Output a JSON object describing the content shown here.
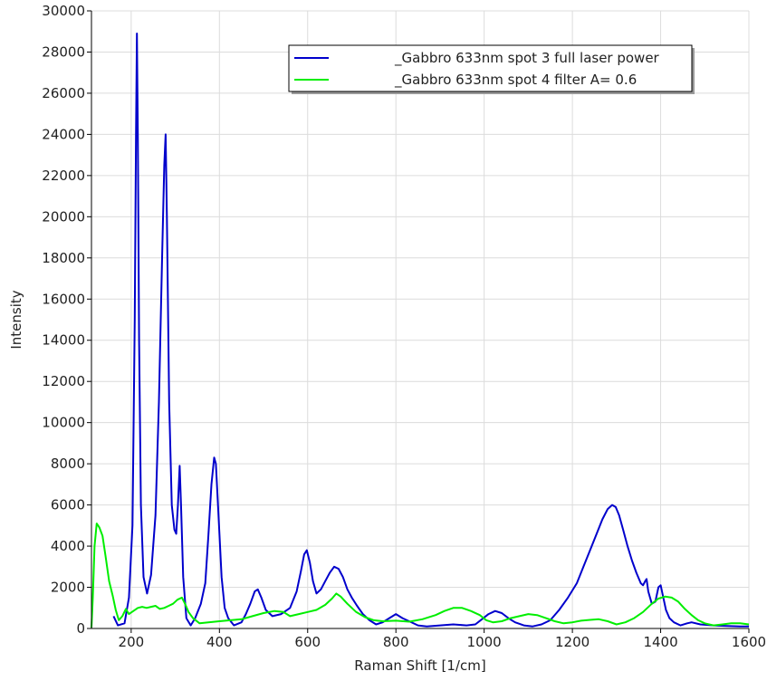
{
  "chart_data": {
    "type": "line",
    "title": "",
    "xlabel": "Raman Shift [1/cm]",
    "ylabel": "Intensity",
    "xlim": [
      110,
      1600
    ],
    "ylim": [
      0,
      30000
    ],
    "x_ticks": [
      200,
      400,
      600,
      800,
      1000,
      1200,
      1400,
      1600
    ],
    "y_ticks": [
      0,
      2000,
      4000,
      6000,
      8000,
      10000,
      12000,
      14000,
      16000,
      18000,
      20000,
      22000,
      24000,
      26000,
      28000,
      30000
    ],
    "grid": true,
    "legend_position": "top-right",
    "series": [
      {
        "name": "_Gabbro 633nm spot 3 full laser power",
        "color": "#0000cc",
        "points": [
          [
            160,
            600
          ],
          [
            170,
            150
          ],
          [
            185,
            250
          ],
          [
            195,
            1500
          ],
          [
            203,
            5000
          ],
          [
            208,
            15000
          ],
          [
            211,
            24000
          ],
          [
            213,
            28900
          ],
          [
            215,
            24000
          ],
          [
            218,
            14000
          ],
          [
            222,
            6000
          ],
          [
            228,
            2500
          ],
          [
            236,
            1700
          ],
          [
            245,
            2600
          ],
          [
            255,
            5500
          ],
          [
            263,
            11000
          ],
          [
            270,
            18000
          ],
          [
            275,
            22500
          ],
          [
            278,
            24000
          ],
          [
            281,
            20000
          ],
          [
            286,
            11000
          ],
          [
            292,
            6000
          ],
          [
            298,
            4800
          ],
          [
            302,
            4600
          ],
          [
            306,
            6000
          ],
          [
            310,
            7900
          ],
          [
            313,
            6000
          ],
          [
            318,
            2500
          ],
          [
            325,
            500
          ],
          [
            335,
            150
          ],
          [
            345,
            500
          ],
          [
            358,
            1200
          ],
          [
            368,
            2200
          ],
          [
            375,
            4500
          ],
          [
            382,
            7000
          ],
          [
            388,
            8300
          ],
          [
            392,
            8000
          ],
          [
            398,
            5500
          ],
          [
            405,
            2500
          ],
          [
            412,
            1000
          ],
          [
            420,
            500
          ],
          [
            433,
            150
          ],
          [
            450,
            300
          ],
          [
            460,
            700
          ],
          [
            470,
            1200
          ],
          [
            480,
            1800
          ],
          [
            487,
            1900
          ],
          [
            495,
            1500
          ],
          [
            505,
            900
          ],
          [
            520,
            600
          ],
          [
            540,
            700
          ],
          [
            560,
            1000
          ],
          [
            575,
            1800
          ],
          [
            585,
            2800
          ],
          [
            592,
            3600
          ],
          [
            598,
            3800
          ],
          [
            605,
            3200
          ],
          [
            612,
            2300
          ],
          [
            620,
            1700
          ],
          [
            630,
            1900
          ],
          [
            640,
            2300
          ],
          [
            650,
            2700
          ],
          [
            660,
            3000
          ],
          [
            670,
            2900
          ],
          [
            680,
            2500
          ],
          [
            690,
            1900
          ],
          [
            700,
            1500
          ],
          [
            712,
            1100
          ],
          [
            725,
            700
          ],
          [
            740,
            400
          ],
          [
            755,
            200
          ],
          [
            770,
            300
          ],
          [
            785,
            500
          ],
          [
            800,
            700
          ],
          [
            815,
            500
          ],
          [
            830,
            350
          ],
          [
            850,
            150
          ],
          [
            870,
            100
          ],
          [
            900,
            150
          ],
          [
            930,
            200
          ],
          [
            960,
            150
          ],
          [
            980,
            200
          ],
          [
            995,
            450
          ],
          [
            1010,
            700
          ],
          [
            1025,
            850
          ],
          [
            1040,
            750
          ],
          [
            1055,
            500
          ],
          [
            1070,
            300
          ],
          [
            1090,
            150
          ],
          [
            1110,
            100
          ],
          [
            1130,
            200
          ],
          [
            1150,
            400
          ],
          [
            1170,
            900
          ],
          [
            1190,
            1500
          ],
          [
            1210,
            2200
          ],
          [
            1225,
            3000
          ],
          [
            1240,
            3800
          ],
          [
            1255,
            4600
          ],
          [
            1268,
            5300
          ],
          [
            1280,
            5800
          ],
          [
            1290,
            6000
          ],
          [
            1298,
            5900
          ],
          [
            1306,
            5500
          ],
          [
            1315,
            4800
          ],
          [
            1325,
            4000
          ],
          [
            1335,
            3300
          ],
          [
            1345,
            2700
          ],
          [
            1355,
            2200
          ],
          [
            1360,
            2100
          ],
          [
            1365,
            2300
          ],
          [
            1368,
            2400
          ],
          [
            1372,
            1800
          ],
          [
            1380,
            1200
          ],
          [
            1388,
            1300
          ],
          [
            1395,
            2000
          ],
          [
            1400,
            2100
          ],
          [
            1405,
            1600
          ],
          [
            1412,
            900
          ],
          [
            1420,
            500
          ],
          [
            1430,
            300
          ],
          [
            1445,
            150
          ],
          [
            1460,
            250
          ],
          [
            1470,
            300
          ],
          [
            1490,
            200
          ],
          [
            1520,
            150
          ],
          [
            1550,
            120
          ],
          [
            1580,
            100
          ],
          [
            1600,
            100
          ]
        ]
      },
      {
        "name": "_Gabbro 633nm spot 4 filter A= 0.6",
        "color": "#00ee00",
        "points": [
          [
            110,
            50
          ],
          [
            113,
            1500
          ],
          [
            117,
            4000
          ],
          [
            122,
            5100
          ],
          [
            128,
            4900
          ],
          [
            135,
            4500
          ],
          [
            142,
            3500
          ],
          [
            150,
            2300
          ],
          [
            158,
            1600
          ],
          [
            165,
            900
          ],
          [
            172,
            400
          ],
          [
            180,
            600
          ],
          [
            188,
            950
          ],
          [
            195,
            700
          ],
          [
            205,
            850
          ],
          [
            215,
            1000
          ],
          [
            225,
            1050
          ],
          [
            235,
            1000
          ],
          [
            245,
            1050
          ],
          [
            255,
            1100
          ],
          [
            265,
            950
          ],
          [
            275,
            1000
          ],
          [
            285,
            1100
          ],
          [
            295,
            1200
          ],
          [
            305,
            1400
          ],
          [
            315,
            1500
          ],
          [
            322,
            1200
          ],
          [
            330,
            800
          ],
          [
            340,
            500
          ],
          [
            355,
            250
          ],
          [
            375,
            300
          ],
          [
            400,
            350
          ],
          [
            425,
            400
          ],
          [
            450,
            450
          ],
          [
            475,
            600
          ],
          [
            500,
            750
          ],
          [
            525,
            850
          ],
          [
            545,
            800
          ],
          [
            560,
            600
          ],
          [
            580,
            700
          ],
          [
            600,
            800
          ],
          [
            620,
            900
          ],
          [
            640,
            1150
          ],
          [
            655,
            1450
          ],
          [
            665,
            1700
          ],
          [
            675,
            1550
          ],
          [
            690,
            1200
          ],
          [
            710,
            800
          ],
          [
            730,
            550
          ],
          [
            750,
            400
          ],
          [
            770,
            350
          ],
          [
            800,
            380
          ],
          [
            830,
            330
          ],
          [
            860,
            450
          ],
          [
            890,
            650
          ],
          [
            910,
            850
          ],
          [
            930,
            1000
          ],
          [
            950,
            1000
          ],
          [
            970,
            850
          ],
          [
            990,
            650
          ],
          [
            1005,
            400
          ],
          [
            1020,
            300
          ],
          [
            1040,
            350
          ],
          [
            1060,
            500
          ],
          [
            1080,
            600
          ],
          [
            1100,
            700
          ],
          [
            1120,
            650
          ],
          [
            1140,
            500
          ],
          [
            1160,
            350
          ],
          [
            1180,
            250
          ],
          [
            1200,
            300
          ],
          [
            1220,
            380
          ],
          [
            1240,
            420
          ],
          [
            1260,
            450
          ],
          [
            1280,
            350
          ],
          [
            1300,
            200
          ],
          [
            1320,
            300
          ],
          [
            1340,
            500
          ],
          [
            1360,
            800
          ],
          [
            1380,
            1200
          ],
          [
            1395,
            1450
          ],
          [
            1410,
            1550
          ],
          [
            1425,
            1500
          ],
          [
            1440,
            1300
          ],
          [
            1455,
            950
          ],
          [
            1470,
            650
          ],
          [
            1485,
            400
          ],
          [
            1500,
            250
          ],
          [
            1520,
            150
          ],
          [
            1540,
            200
          ],
          [
            1560,
            250
          ],
          [
            1580,
            250
          ],
          [
            1600,
            200
          ]
        ]
      }
    ]
  }
}
